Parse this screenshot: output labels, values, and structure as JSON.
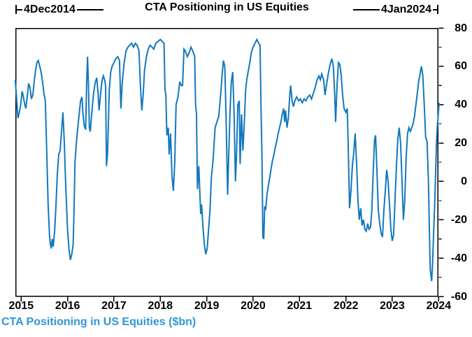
{
  "title": "CTA Positioning in US Equities",
  "annotations": {
    "start_date": "4Dec2014",
    "end_date": "4Jan2024"
  },
  "legend": "CTA Positioning in US Equities ($bn)",
  "colors": {
    "line": "#1278be",
    "legend_text": "#2f96d6",
    "axis": "#000000",
    "text": "#000000",
    "background": "#ffffff"
  },
  "chart_data": {
    "type": "line",
    "title": "CTA Positioning in US Equities",
    "xlabel": "",
    "ylabel": "CTA Positioning in US Equities ($bn)",
    "grid": false,
    "legend_position": "bottom-left",
    "x_range_annotation": {
      "start": "4Dec2014",
      "end": "4Jan2024"
    },
    "x_ticks": [
      2015,
      2016,
      2017,
      2018,
      2019,
      2020,
      2021,
      2022,
      2023,
      2024
    ],
    "y_ticks": [
      80,
      60,
      40,
      20,
      0,
      -20,
      -40,
      -60
    ],
    "y_minor_ticks": [
      70,
      50,
      30,
      10,
      -10,
      -30,
      -50
    ],
    "xlim": [
      2014.87,
      2024.05
    ],
    "ylim": [
      -60,
      80
    ],
    "series": [
      {
        "name": "CTA Positioning in US Equities ($bn)",
        "points": [
          [
            2014.87,
            53
          ],
          [
            2014.89,
            47
          ],
          [
            2014.91,
            40
          ],
          [
            2014.93,
            33
          ],
          [
            2014.96,
            36
          ],
          [
            2014.99,
            40
          ],
          [
            2015.02,
            47
          ],
          [
            2015.04,
            45
          ],
          [
            2015.07,
            41
          ],
          [
            2015.1,
            38
          ],
          [
            2015.13,
            44
          ],
          [
            2015.16,
            51
          ],
          [
            2015.19,
            49
          ],
          [
            2015.22,
            43
          ],
          [
            2015.25,
            45
          ],
          [
            2015.28,
            52
          ],
          [
            2015.31,
            58
          ],
          [
            2015.34,
            62
          ],
          [
            2015.37,
            63
          ],
          [
            2015.4,
            60
          ],
          [
            2015.43,
            57
          ],
          [
            2015.46,
            52
          ],
          [
            2015.49,
            46
          ],
          [
            2015.52,
            42
          ],
          [
            2015.54,
            25
          ],
          [
            2015.56,
            8
          ],
          [
            2015.58,
            -12
          ],
          [
            2015.61,
            -28
          ],
          [
            2015.63,
            -33
          ],
          [
            2015.65,
            -35
          ],
          [
            2015.67,
            -30
          ],
          [
            2015.69,
            -34
          ],
          [
            2015.72,
            -26
          ],
          [
            2015.75,
            -13
          ],
          [
            2015.78,
            4
          ],
          [
            2015.81,
            14
          ],
          [
            2015.84,
            16
          ],
          [
            2015.87,
            26
          ],
          [
            2015.9,
            36
          ],
          [
            2015.93,
            20
          ],
          [
            2015.95,
            5
          ],
          [
            2015.97,
            -8
          ],
          [
            2016.0,
            -25
          ],
          [
            2016.03,
            -35
          ],
          [
            2016.06,
            -41
          ],
          [
            2016.09,
            -38
          ],
          [
            2016.12,
            -33
          ],
          [
            2016.14,
            -15
          ],
          [
            2016.16,
            10
          ],
          [
            2016.19,
            20
          ],
          [
            2016.22,
            28
          ],
          [
            2016.25,
            35
          ],
          [
            2016.28,
            42
          ],
          [
            2016.31,
            44
          ],
          [
            2016.33,
            36
          ],
          [
            2016.36,
            29
          ],
          [
            2016.39,
            27
          ],
          [
            2016.41,
            50
          ],
          [
            2016.43,
            65
          ],
          [
            2016.45,
            50
          ],
          [
            2016.47,
            28
          ],
          [
            2016.49,
            26
          ],
          [
            2016.52,
            35
          ],
          [
            2016.56,
            46
          ],
          [
            2016.6,
            52
          ],
          [
            2016.63,
            54
          ],
          [
            2016.66,
            45
          ],
          [
            2016.68,
            37
          ],
          [
            2016.71,
            45
          ],
          [
            2016.74,
            52
          ],
          [
            2016.77,
            55
          ],
          [
            2016.8,
            53
          ],
          [
            2016.82,
            50
          ],
          [
            2016.84,
            8
          ],
          [
            2016.86,
            14
          ],
          [
            2016.88,
            30
          ],
          [
            2016.9,
            48
          ],
          [
            2016.93,
            57
          ],
          [
            2016.96,
            60
          ],
          [
            2017.0,
            62
          ],
          [
            2017.04,
            64
          ],
          [
            2017.08,
            65
          ],
          [
            2017.12,
            63
          ],
          [
            2017.15,
            38
          ],
          [
            2017.18,
            52
          ],
          [
            2017.22,
            62
          ],
          [
            2017.26,
            68
          ],
          [
            2017.3,
            70
          ],
          [
            2017.34,
            71
          ],
          [
            2017.38,
            72
          ],
          [
            2017.42,
            70
          ],
          [
            2017.46,
            72
          ],
          [
            2017.5,
            71
          ],
          [
            2017.54,
            68
          ],
          [
            2017.57,
            50
          ],
          [
            2017.6,
            37
          ],
          [
            2017.63,
            45
          ],
          [
            2017.66,
            58
          ],
          [
            2017.7,
            65
          ],
          [
            2017.74,
            69
          ],
          [
            2017.78,
            71
          ],
          [
            2017.82,
            70
          ],
          [
            2017.86,
            69
          ],
          [
            2017.9,
            72
          ],
          [
            2017.95,
            73
          ],
          [
            2018.0,
            74
          ],
          [
            2018.04,
            73
          ],
          [
            2018.08,
            72
          ],
          [
            2018.1,
            48
          ],
          [
            2018.12,
            45
          ],
          [
            2018.14,
            24
          ],
          [
            2018.17,
            28
          ],
          [
            2018.19,
            14
          ],
          [
            2018.22,
            25
          ],
          [
            2018.25,
            3
          ],
          [
            2018.28,
            -5
          ],
          [
            2018.31,
            10
          ],
          [
            2018.34,
            40
          ],
          [
            2018.38,
            44
          ],
          [
            2018.42,
            52
          ],
          [
            2018.45,
            50
          ],
          [
            2018.48,
            50
          ],
          [
            2018.51,
            69
          ],
          [
            2018.54,
            68
          ],
          [
            2018.58,
            65
          ],
          [
            2018.62,
            67
          ],
          [
            2018.66,
            70
          ],
          [
            2018.7,
            68
          ],
          [
            2018.74,
            65
          ],
          [
            2018.76,
            40
          ],
          [
            2018.78,
            35
          ],
          [
            2018.8,
            -4
          ],
          [
            2018.83,
            8
          ],
          [
            2018.85,
            -5
          ],
          [
            2018.87,
            -17
          ],
          [
            2018.89,
            -12
          ],
          [
            2018.92,
            -24
          ],
          [
            2018.95,
            -33
          ],
          [
            2018.98,
            -38
          ],
          [
            2019.01,
            -35
          ],
          [
            2019.04,
            -25
          ],
          [
            2019.07,
            -15
          ],
          [
            2019.1,
            2
          ],
          [
            2019.14,
            12
          ],
          [
            2019.18,
            28
          ],
          [
            2019.22,
            31
          ],
          [
            2019.26,
            34
          ],
          [
            2019.3,
            45
          ],
          [
            2019.33,
            55
          ],
          [
            2019.36,
            63
          ],
          [
            2019.39,
            60
          ],
          [
            2019.42,
            30
          ],
          [
            2019.45,
            -7
          ],
          [
            2019.47,
            10
          ],
          [
            2019.5,
            35
          ],
          [
            2019.53,
            52
          ],
          [
            2019.56,
            57
          ],
          [
            2019.59,
            35
          ],
          [
            2019.62,
            0
          ],
          [
            2019.64,
            12
          ],
          [
            2019.67,
            40
          ],
          [
            2019.7,
            42
          ],
          [
            2019.72,
            9
          ],
          [
            2019.75,
            35
          ],
          [
            2019.78,
            16
          ],
          [
            2019.81,
            30
          ],
          [
            2019.84,
            48
          ],
          [
            2019.87,
            54
          ],
          [
            2019.9,
            58
          ],
          [
            2019.93,
            62
          ],
          [
            2019.96,
            67
          ],
          [
            2020.0,
            70
          ],
          [
            2020.04,
            72
          ],
          [
            2020.08,
            74
          ],
          [
            2020.12,
            72
          ],
          [
            2020.15,
            71
          ],
          [
            2020.17,
            40
          ],
          [
            2020.19,
            14
          ],
          [
            2020.21,
            -29
          ],
          [
            2020.23,
            -30
          ],
          [
            2020.25,
            -13
          ],
          [
            2020.27,
            -15
          ],
          [
            2020.3,
            -7
          ],
          [
            2020.33,
            -2
          ],
          [
            2020.36,
            2
          ],
          [
            2020.39,
            7
          ],
          [
            2020.42,
            11
          ],
          [
            2020.45,
            14
          ],
          [
            2020.48,
            18
          ],
          [
            2020.51,
            21
          ],
          [
            2020.54,
            25
          ],
          [
            2020.57,
            28
          ],
          [
            2020.6,
            31
          ],
          [
            2020.63,
            35
          ],
          [
            2020.66,
            38
          ],
          [
            2020.68,
            31
          ],
          [
            2020.7,
            37
          ],
          [
            2020.73,
            28
          ],
          [
            2020.76,
            33
          ],
          [
            2020.79,
            45
          ],
          [
            2020.81,
            50
          ],
          [
            2020.84,
            42
          ],
          [
            2020.87,
            39
          ],
          [
            2020.9,
            42
          ],
          [
            2020.94,
            44
          ],
          [
            2020.98,
            42
          ],
          [
            2021.02,
            43
          ],
          [
            2021.06,
            41
          ],
          [
            2021.1,
            43
          ],
          [
            2021.14,
            42
          ],
          [
            2021.18,
            44
          ],
          [
            2021.22,
            45
          ],
          [
            2021.26,
            43
          ],
          [
            2021.3,
            46
          ],
          [
            2021.34,
            49
          ],
          [
            2021.38,
            53
          ],
          [
            2021.42,
            55
          ],
          [
            2021.45,
            53
          ],
          [
            2021.48,
            56
          ],
          [
            2021.52,
            53
          ],
          [
            2021.55,
            45
          ],
          [
            2021.58,
            50
          ],
          [
            2021.62,
            56
          ],
          [
            2021.66,
            61
          ],
          [
            2021.7,
            64
          ],
          [
            2021.73,
            60
          ],
          [
            2021.76,
            45
          ],
          [
            2021.78,
            31
          ],
          [
            2021.81,
            50
          ],
          [
            2021.84,
            62
          ],
          [
            2021.87,
            61
          ],
          [
            2021.9,
            55
          ],
          [
            2021.93,
            45
          ],
          [
            2021.96,
            38
          ],
          [
            2022.0,
            36
          ],
          [
            2022.03,
            38
          ],
          [
            2022.05,
            20
          ],
          [
            2022.08,
            -14
          ],
          [
            2022.11,
            -5
          ],
          [
            2022.14,
            8
          ],
          [
            2022.17,
            15
          ],
          [
            2022.2,
            25
          ],
          [
            2022.23,
            10
          ],
          [
            2022.26,
            -10
          ],
          [
            2022.29,
            -20
          ],
          [
            2022.32,
            -14
          ],
          [
            2022.35,
            -23
          ],
          [
            2022.38,
            -20
          ],
          [
            2022.41,
            -25
          ],
          [
            2022.44,
            -26
          ],
          [
            2022.47,
            -22
          ],
          [
            2022.5,
            -25
          ],
          [
            2022.53,
            -24
          ],
          [
            2022.56,
            -15
          ],
          [
            2022.59,
            5
          ],
          [
            2022.62,
            22
          ],
          [
            2022.64,
            24
          ],
          [
            2022.67,
            5
          ],
          [
            2022.7,
            -15
          ],
          [
            2022.73,
            -22
          ],
          [
            2022.76,
            -27
          ],
          [
            2022.79,
            -29
          ],
          [
            2022.82,
            -15
          ],
          [
            2022.85,
            -5
          ],
          [
            2022.88,
            6
          ],
          [
            2022.91,
            0
          ],
          [
            2022.94,
            -12
          ],
          [
            2022.97,
            -25
          ],
          [
            2023.0,
            -31
          ],
          [
            2023.03,
            -28
          ],
          [
            2023.06,
            -10
          ],
          [
            2023.09,
            8
          ],
          [
            2023.12,
            22
          ],
          [
            2023.15,
            28
          ],
          [
            2023.18,
            20
          ],
          [
            2023.21,
            0
          ],
          [
            2023.24,
            -20
          ],
          [
            2023.27,
            -10
          ],
          [
            2023.3,
            12
          ],
          [
            2023.33,
            25
          ],
          [
            2023.36,
            28
          ],
          [
            2023.39,
            26
          ],
          [
            2023.42,
            28
          ],
          [
            2023.45,
            30
          ],
          [
            2023.48,
            34
          ],
          [
            2023.51,
            40
          ],
          [
            2023.54,
            46
          ],
          [
            2023.57,
            52
          ],
          [
            2023.6,
            56
          ],
          [
            2023.63,
            60
          ],
          [
            2023.66,
            55
          ],
          [
            2023.69,
            40
          ],
          [
            2023.72,
            23
          ],
          [
            2023.75,
            21
          ],
          [
            2023.78,
            0
          ],
          [
            2023.8,
            -25
          ],
          [
            2023.82,
            -46
          ],
          [
            2023.85,
            -52
          ],
          [
            2023.87,
            -43
          ],
          [
            2023.89,
            -28
          ],
          [
            2023.92,
            -8
          ],
          [
            2023.95,
            18
          ],
          [
            2023.97,
            28
          ],
          [
            2023.99,
            34
          ],
          [
            2024.01,
            41
          ]
        ]
      }
    ]
  }
}
